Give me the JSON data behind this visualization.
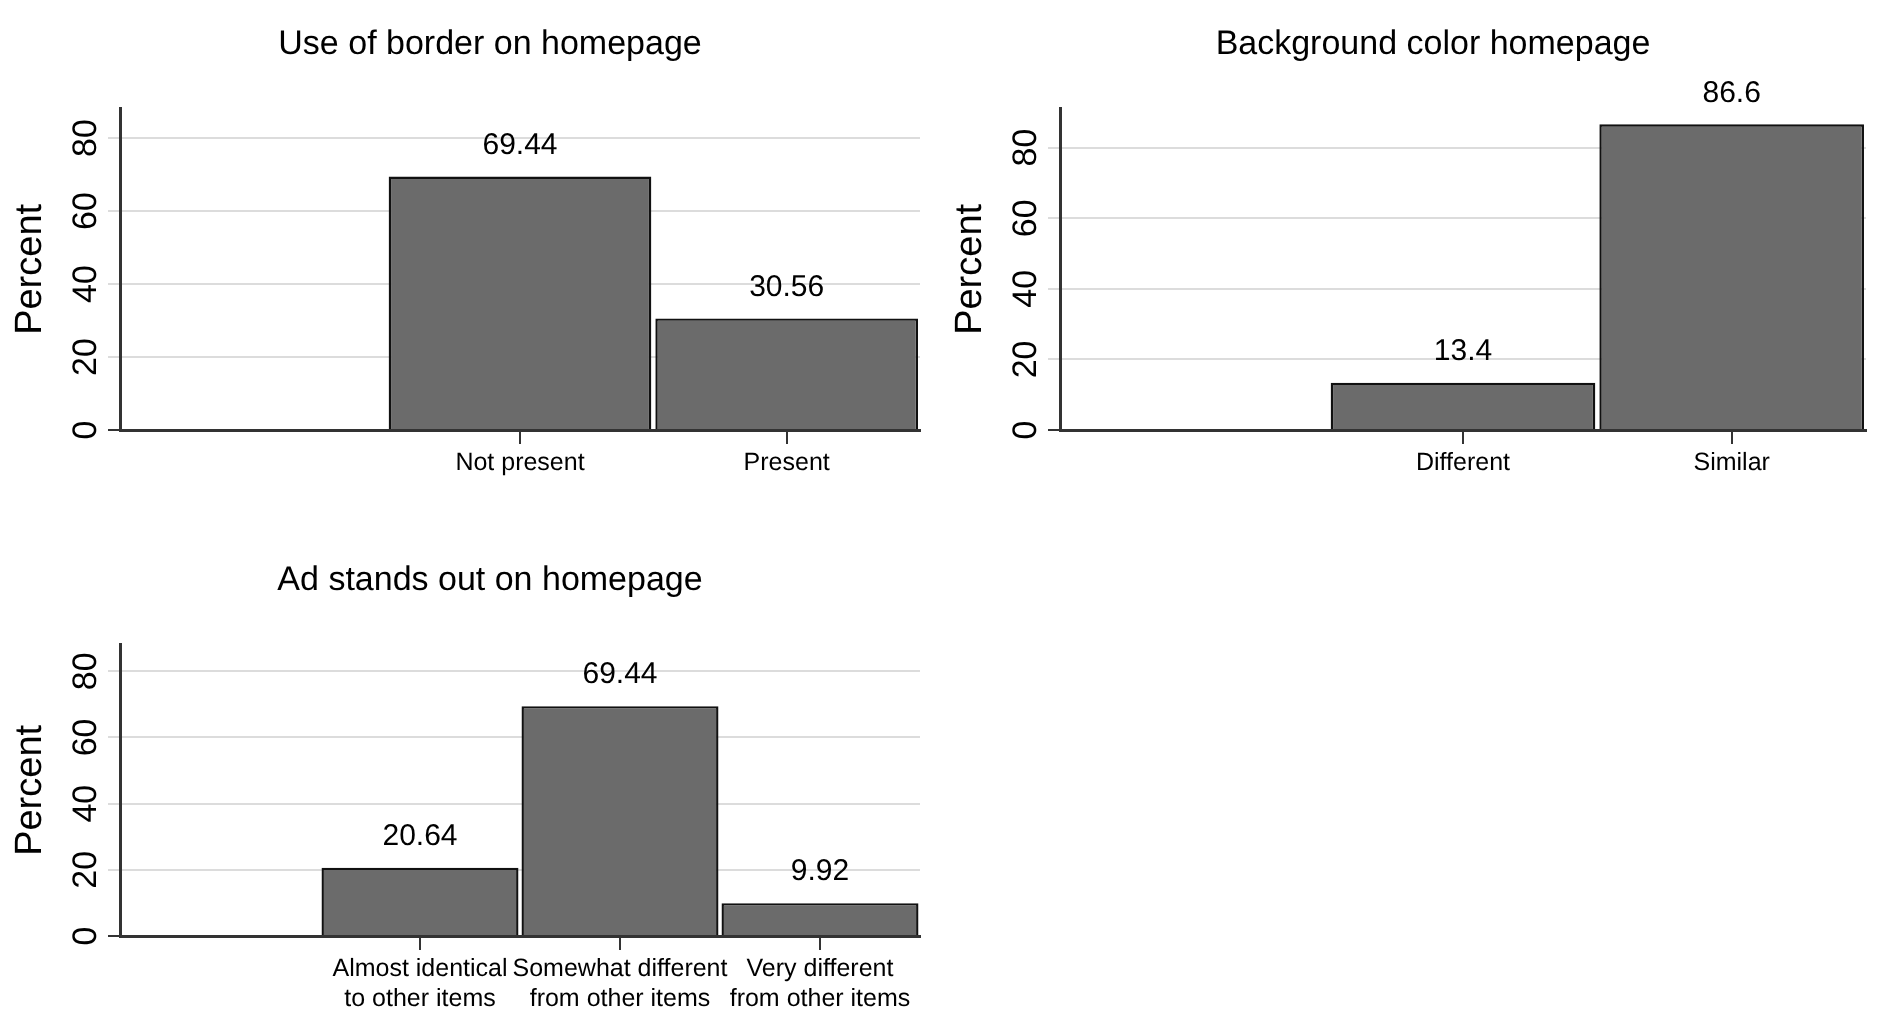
{
  "chart_data": [
    {
      "type": "bar",
      "title": "Use of border on homepage",
      "ylabel": "Percent",
      "categories": [
        null,
        "Not present",
        "Present"
      ],
      "values": [
        null,
        69.44,
        30.56
      ],
      "color": "#6b6b6b",
      "ylim": [
        0,
        88
      ],
      "yticks": [
        0,
        20,
        40,
        60,
        80
      ],
      "grid": "y",
      "data_labels": true,
      "legend": false
    },
    {
      "type": "bar",
      "title": "Background color homepage",
      "ylabel": "Percent",
      "categories": [
        null,
        "Different",
        "Similar"
      ],
      "values": [
        null,
        13.4,
        86.6
      ],
      "color": "#6b6b6b",
      "ylim": [
        0,
        91
      ],
      "yticks": [
        0,
        20,
        40,
        60,
        80
      ],
      "grid": "y",
      "data_labels": true,
      "legend": false
    },
    {
      "type": "bar",
      "title": "Ad stands out on homepage",
      "ylabel": "Percent",
      "categories": [
        null,
        "Almost identical\nto other items",
        "Somewhat different\nfrom other items",
        "Very different\nfrom other items"
      ],
      "values": [
        null,
        20.64,
        69.44,
        9.92
      ],
      "color": "#6b6b6b",
      "ylim": [
        0,
        88
      ],
      "yticks": [
        0,
        20,
        40,
        60,
        80
      ],
      "grid": "y",
      "data_labels": true,
      "legend": false
    }
  ]
}
